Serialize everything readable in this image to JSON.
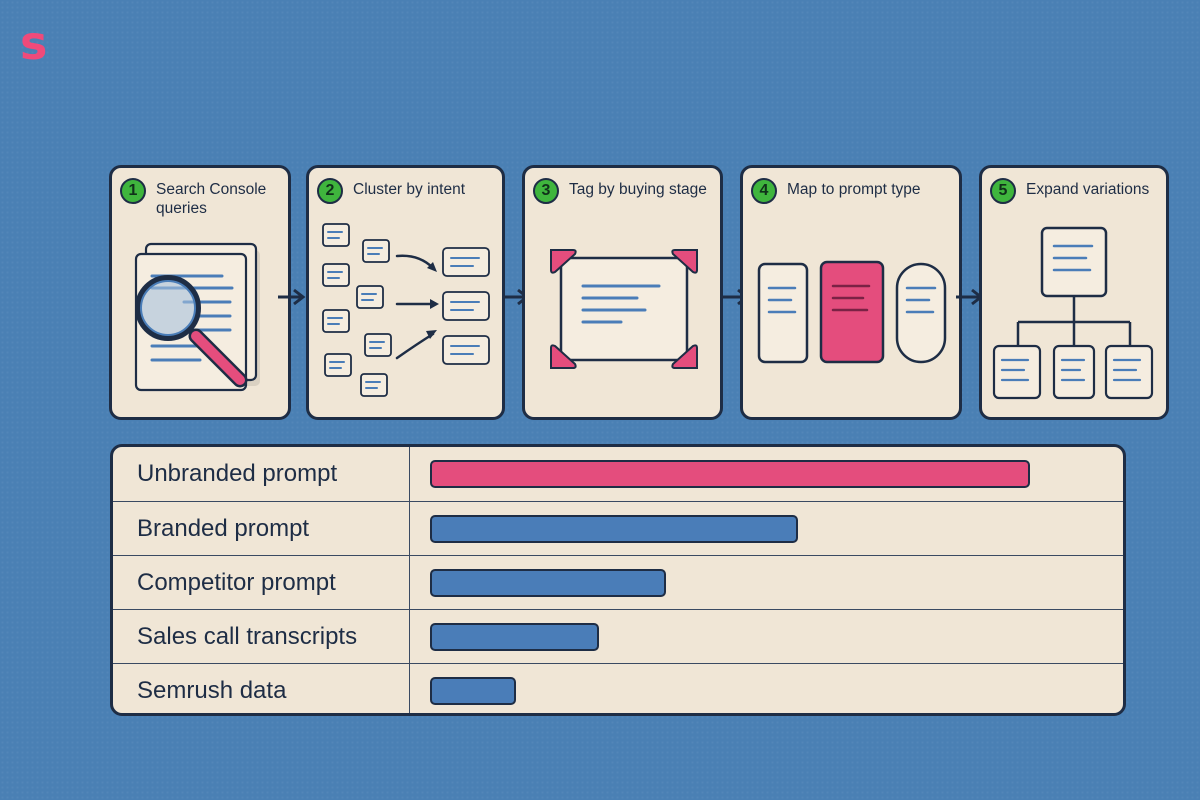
{
  "brand": {
    "logo_text": "s",
    "logo_color": "#f04a7a"
  },
  "colors": {
    "background": "#4a80b4",
    "card": "#f0e6d6",
    "ink": "#1e2d45",
    "pink": "#e44d7d",
    "blue": "#4a7db8",
    "badge_green": "#3fb53d"
  },
  "steps": [
    {
      "number": "1",
      "title": "Search Console queries",
      "icon": "magnifier-documents-icon"
    },
    {
      "number": "2",
      "title": "Cluster by intent",
      "icon": "cluster-cards-icon"
    },
    {
      "number": "3",
      "title": "Tag by buying stage",
      "icon": "tagged-card-icon"
    },
    {
      "number": "4",
      "title": "Map to prompt type",
      "icon": "prompt-type-cards-icon"
    },
    {
      "number": "5",
      "title": "Expand variations",
      "icon": "tree-expansion-icon"
    }
  ],
  "sources": [
    {
      "label": "Unbranded prompt",
      "value": 0.8,
      "color": "#e44d7d"
    },
    {
      "label": "Branded prompt",
      "value": 0.49,
      "color": "#4a7db8"
    },
    {
      "label": "Competitor prompt",
      "value": 0.315,
      "color": "#4a7db8"
    },
    {
      "label": "Sales call transcripts",
      "value": 0.225,
      "color": "#4a7db8"
    },
    {
      "label": "Semrush data",
      "value": 0.115,
      "color": "#4a7db8"
    }
  ]
}
